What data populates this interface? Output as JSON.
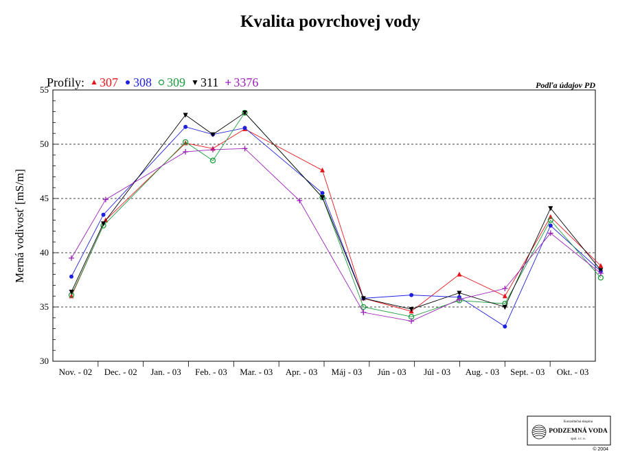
{
  "chart_data": {
    "type": "line",
    "title": "Kvalita povrchovej vody",
    "ylabel": "Merná vodivosť [mS/m]",
    "xlabel": "",
    "source_note": "Podľa údajov PD",
    "legend_title": "Profily:",
    "legend_placement": "top-left",
    "ylim": [
      30,
      55
    ],
    "yticks": [
      30,
      35,
      40,
      45,
      50,
      55
    ],
    "gridlines": [
      35,
      40,
      45,
      50
    ],
    "categories": [
      "Nov. - 02",
      "Dec. - 02",
      "Jan. - 03",
      "Feb. - 03",
      "Mar. - 03",
      "Apr. - 03",
      "Máj - 03",
      "Jún - 03",
      "Júl - 03",
      "Aug. - 03",
      "Sept. - 03",
      "Okt. - 03"
    ],
    "series": [
      {
        "name": "307",
        "color": "#e8141a",
        "marker": "triangle-up",
        "points": [
          [
            0,
            36.0
          ],
          [
            0.75,
            43.0
          ],
          [
            2.5,
            50.1
          ],
          [
            3.1,
            49.6
          ],
          [
            3.8,
            51.4
          ],
          [
            5.5,
            47.6
          ],
          [
            6.4,
            35.8
          ],
          [
            7.45,
            34.6
          ],
          [
            8.5,
            38.0
          ],
          [
            9.5,
            36.0
          ],
          [
            10.5,
            43.3
          ],
          [
            11.6,
            38.8
          ]
        ]
      },
      {
        "name": "308",
        "color": "#1f1fe0",
        "marker": "circle",
        "points": [
          [
            0,
            37.8
          ],
          [
            0.7,
            43.5
          ],
          [
            2.5,
            51.6
          ],
          [
            3.1,
            50.9
          ],
          [
            3.8,
            51.5
          ],
          [
            5.5,
            45.5
          ],
          [
            6.4,
            35.8
          ],
          [
            7.45,
            36.1
          ],
          [
            8.5,
            35.9
          ],
          [
            9.5,
            33.2
          ],
          [
            10.5,
            42.5
          ],
          [
            11.6,
            38.3
          ]
        ]
      },
      {
        "name": "309",
        "color": "#1a9a3c",
        "marker": "circle-open",
        "points": [
          [
            0,
            36.1
          ],
          [
            0.7,
            42.5
          ],
          [
            2.5,
            50.2
          ],
          [
            3.1,
            48.5
          ],
          [
            3.8,
            52.9
          ],
          [
            5.5,
            45.1
          ],
          [
            6.4,
            35.0
          ],
          [
            7.45,
            34.1
          ],
          [
            8.5,
            35.6
          ],
          [
            9.5,
            35.3
          ],
          [
            10.5,
            43.0
          ],
          [
            11.6,
            37.7
          ]
        ]
      },
      {
        "name": "311",
        "color": "#000000",
        "marker": "triangle-down",
        "points": [
          [
            0,
            36.4
          ],
          [
            0.7,
            42.7
          ],
          [
            2.5,
            52.7
          ],
          [
            3.1,
            50.9
          ],
          [
            3.8,
            52.9
          ],
          [
            5.5,
            45.1
          ],
          [
            6.4,
            35.8
          ],
          [
            7.45,
            34.8
          ],
          [
            8.5,
            36.3
          ],
          [
            9.5,
            35.0
          ],
          [
            10.5,
            44.1
          ],
          [
            11.6,
            38.4
          ]
        ]
      },
      {
        "name": "3376",
        "color": "#9b1fb8",
        "marker": "plus",
        "points": [
          [
            0,
            39.5
          ],
          [
            0.75,
            44.9
          ],
          [
            2.5,
            49.3
          ],
          [
            3.1,
            49.5
          ],
          [
            3.8,
            49.6
          ],
          [
            5.0,
            44.8
          ],
          [
            6.4,
            34.5
          ],
          [
            7.45,
            33.7
          ],
          [
            8.5,
            35.7
          ],
          [
            9.5,
            36.7
          ],
          [
            10.5,
            41.8
          ],
          [
            11.6,
            38.1
          ]
        ]
      }
    ]
  },
  "logo": {
    "top_text": "Konzultačná skupina",
    "name": "PODZEMNÁ VODA",
    "sub": "spol. s r. o.",
    "copyright": "© 2004"
  }
}
